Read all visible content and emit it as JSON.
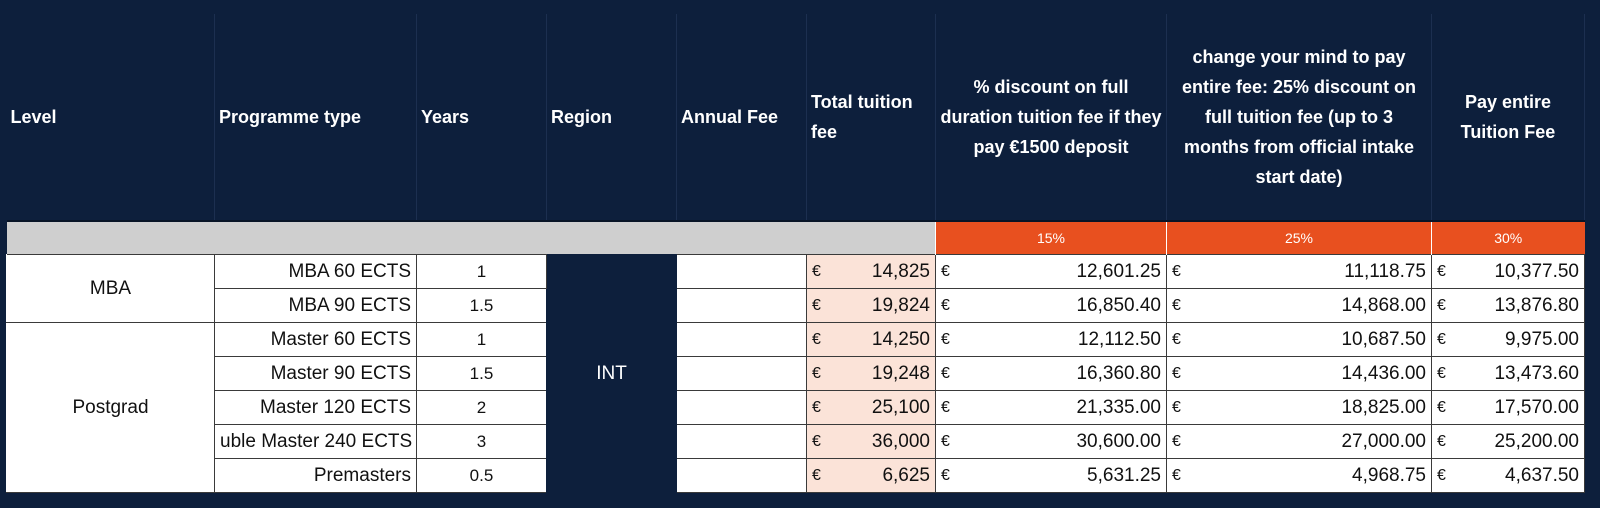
{
  "header": {
    "level": "Level",
    "programme_type": "Programme type",
    "years": "Years",
    "region": "Region",
    "annual_fee": "Annual Fee",
    "total_fee": "Total tuition fee",
    "discount_deposit": "% discount on full duration tuition fee if they pay €1500 deposit",
    "discount_change": "change your mind to pay entire fee: 25% discount on full tuition fee (up to 3 months from official intake start date)",
    "pay_entire": "Pay entire Tuition Fee"
  },
  "discounts": {
    "deposit": "15%",
    "change": "25%",
    "entire": "30%"
  },
  "currency": "€",
  "groups": {
    "mba": "MBA",
    "postgrad": "Postgrad"
  },
  "region_value": "INT",
  "rows": [
    {
      "programme": "MBA 60 ECTS",
      "years": "1",
      "total": "14,825",
      "deposit": "12,601.25",
      "change": "11,118.75",
      "entire": "10,377.50"
    },
    {
      "programme": "MBA 90 ECTS",
      "years": "1.5",
      "total": "19,824",
      "deposit": "16,850.40",
      "change": "14,868.00",
      "entire": "13,876.80"
    },
    {
      "programme": "Master 60 ECTS",
      "years": "1",
      "total": "14,250",
      "deposit": "12,112.50",
      "change": "10,687.50",
      "entire": "9,975.00"
    },
    {
      "programme": "Master 90 ECTS",
      "years": "1.5",
      "total": "19,248",
      "deposit": "16,360.80",
      "change": "14,436.00",
      "entire": "13,473.60"
    },
    {
      "programme": "Master 120 ECTS",
      "years": "2",
      "total": "25,100",
      "deposit": "21,335.00",
      "change": "18,825.00",
      "entire": "17,570.00"
    },
    {
      "programme": "uble Master 240 ECTS",
      "years": "3",
      "total": "36,000",
      "deposit": "30,600.00",
      "change": "27,000.00",
      "entire": "25,200.00"
    },
    {
      "programme": "Premasters",
      "years": "0.5",
      "total": "6,625",
      "deposit": "5,631.25",
      "change": "4,968.75",
      "entire": "4,637.50"
    }
  ]
}
